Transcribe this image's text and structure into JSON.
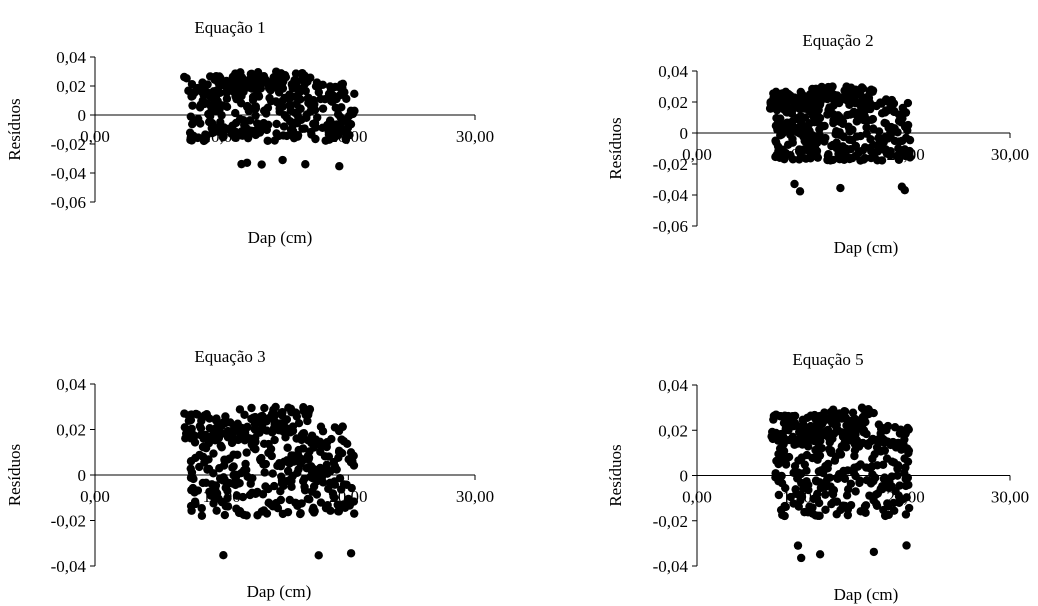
{
  "chart_data": [
    {
      "type": "scatter",
      "title": "Equação 1",
      "xlabel": "Dap (cm)",
      "ylabel": "Resíduos",
      "xlim": [
        0,
        30
      ],
      "ylim": [
        -0.06,
        0.04
      ],
      "x_ticks": [
        "0,00",
        "10,00",
        "20,00",
        "30,00"
      ],
      "y_ticks": [
        "0,04",
        "0,02",
        "0",
        "-0,02",
        "-0,04",
        "-0,06"
      ],
      "grid": false,
      "seed": 11
    },
    {
      "type": "scatter",
      "title": "Equação 2",
      "xlabel": "Dap (cm)",
      "ylabel": "Resíduos",
      "xlim": [
        0,
        30
      ],
      "ylim": [
        -0.06,
        0.04
      ],
      "x_ticks": [
        "0,00",
        "10,00",
        "20,00",
        "30,00"
      ],
      "y_ticks": [
        "0,04",
        "0,02",
        "0",
        "-0,02",
        "-0,04",
        "-0,06"
      ],
      "grid": false,
      "seed": 23
    },
    {
      "type": "scatter",
      "title": "Equação 3",
      "xlabel": "Dap (cm)",
      "ylabel": "Resíduos",
      "xlim": [
        0,
        30
      ],
      "ylim": [
        -0.04,
        0.04
      ],
      "x_ticks": [
        "0,00",
        "10,00",
        "20,00",
        "30,00"
      ],
      "y_ticks": [
        "0,04",
        "0,02",
        "0",
        "-0,02",
        "-0,04"
      ],
      "grid": false,
      "seed": 37
    },
    {
      "type": "scatter",
      "title": "Equação 5",
      "xlabel": "Dap (cm)",
      "ylabel": "Resíduos",
      "xlim": [
        0,
        30
      ],
      "ylim": [
        -0.04,
        0.04
      ],
      "x_ticks": [
        "0,00",
        "10,00",
        "20,00",
        "30,00"
      ],
      "y_ticks": [
        "0,04",
        "0,02",
        "0",
        "-0,02",
        "-0,04"
      ],
      "grid": false,
      "seed": 53
    }
  ]
}
